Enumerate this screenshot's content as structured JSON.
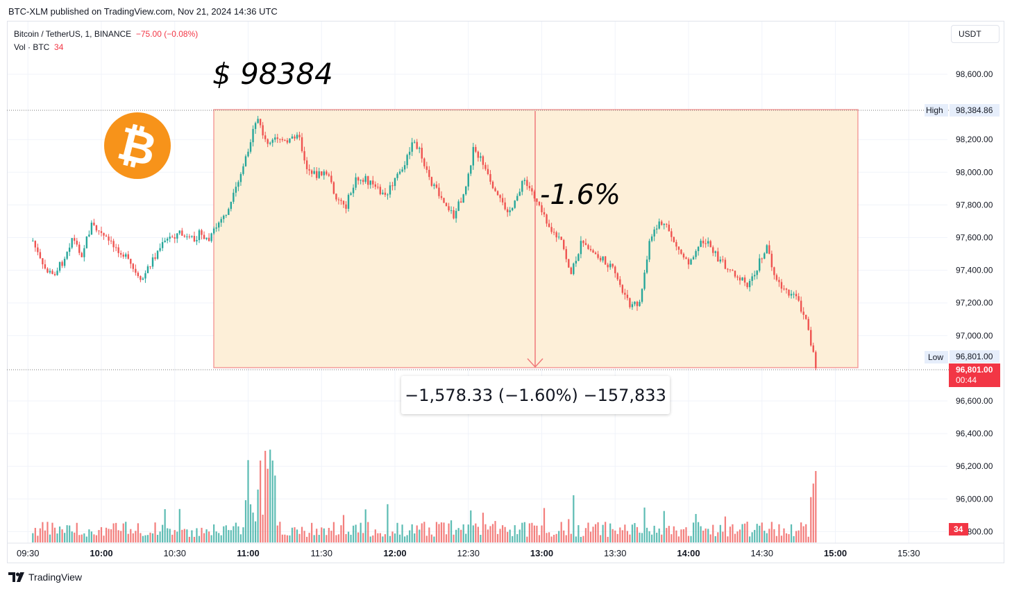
{
  "header": {
    "publisher": "BTC-XLM published on TradingView.com, Nov 21, 2024 14:36 UTC"
  },
  "legend": {
    "symbol": "Bitcoin / TetherUS, 1, BINANCE",
    "change": "−75.00 (−0.08%)",
    "volume_label": "Vol · BTC",
    "volume_value": "34"
  },
  "currency_button": "USDT",
  "annotations": {
    "price_text": "$ 98384",
    "percent_text": "-1.6%",
    "measure_text": "−1,578.33 (−1.60%) −157,833"
  },
  "footer": {
    "brand": "TradingView"
  },
  "colors": {
    "up": "#26a69a",
    "down": "#ef5350",
    "range_fill": "#fdefd8",
    "range_line": "#f0787a",
    "bitcoin": "#f7931a"
  },
  "price_markers": {
    "high_label": "High",
    "high_value": "98,384.86",
    "low_label": "Low",
    "low_value": "96,801.00",
    "last_value": "96,801.00",
    "last_countdown": "00:44",
    "volume_badge": "34"
  },
  "chart_data": {
    "type": "candlestick",
    "symbol": "Bitcoin / TetherUS",
    "interval": "1",
    "exchange": "BINANCE",
    "y_axis": {
      "ticks": [
        "98,600.00",
        "98,200.00",
        "98,000.00",
        "97,800.00",
        "97,600.00",
        "97,400.00",
        "97,200.00",
        "97,000.00",
        "96,600.00",
        "96,400.00",
        "96,200.00",
        "96,000.00",
        "95,800.00"
      ],
      "tick_values": [
        98600,
        98200,
        98000,
        97800,
        97600,
        97400,
        97200,
        97000,
        96600,
        96400,
        96200,
        96000,
        95800
      ],
      "ylim": [
        95800,
        98650
      ]
    },
    "x_axis": {
      "ticks": [
        "09:30",
        "10:00",
        "10:30",
        "11:00",
        "11:30",
        "12:00",
        "12:30",
        "13:00",
        "13:30",
        "14:00",
        "14:30",
        "15:00",
        "15:30"
      ]
    },
    "high": 98384.86,
    "low": 96801.0,
    "last": 96801.0,
    "measure": {
      "from": 98384.86,
      "to": 96806.53,
      "change": -1578.33,
      "percent": -1.6
    },
    "series": [
      {
        "time": "09:32",
        "close": 97580
      },
      {
        "time": "09:36",
        "close": 97420
      },
      {
        "time": "09:40",
        "close": 97370
      },
      {
        "time": "09:44",
        "close": 97450
      },
      {
        "time": "09:48",
        "close": 97600
      },
      {
        "time": "09:52",
        "close": 97500
      },
      {
        "time": "09:56",
        "close": 97680
      },
      {
        "time": "10:00",
        "close": 97620
      },
      {
        "time": "10:04",
        "close": 97560
      },
      {
        "time": "10:08",
        "close": 97520
      },
      {
        "time": "10:12",
        "close": 97430
      },
      {
        "time": "10:16",
        "close": 97320
      },
      {
        "time": "10:20",
        "close": 97440
      },
      {
        "time": "10:24",
        "close": 97540
      },
      {
        "time": "10:28",
        "close": 97600
      },
      {
        "time": "10:32",
        "close": 97630
      },
      {
        "time": "10:36",
        "close": 97580
      },
      {
        "time": "10:40",
        "close": 97620
      },
      {
        "time": "10:44",
        "close": 97580
      },
      {
        "time": "10:48",
        "close": 97690
      },
      {
        "time": "10:52",
        "close": 97770
      },
      {
        "time": "10:56",
        "close": 97930
      },
      {
        "time": "11:00",
        "close": 98150
      },
      {
        "time": "11:04",
        "close": 98330
      },
      {
        "time": "11:08",
        "close": 98160
      },
      {
        "time": "11:12",
        "close": 98220
      },
      {
        "time": "11:16",
        "close": 98170
      },
      {
        "time": "11:20",
        "close": 98250
      },
      {
        "time": "11:24",
        "close": 98030
      },
      {
        "time": "11:28",
        "close": 97980
      },
      {
        "time": "11:32",
        "close": 98000
      },
      {
        "time": "11:36",
        "close": 97850
      },
      {
        "time": "11:40",
        "close": 97800
      },
      {
        "time": "11:44",
        "close": 97950
      },
      {
        "time": "11:48",
        "close": 97960
      },
      {
        "time": "11:52",
        "close": 97900
      },
      {
        "time": "11:56",
        "close": 97850
      },
      {
        "time": "12:00",
        "close": 97950
      },
      {
        "time": "12:04",
        "close": 98050
      },
      {
        "time": "12:08",
        "close": 98200
      },
      {
        "time": "12:12",
        "close": 98050
      },
      {
        "time": "12:16",
        "close": 97900
      },
      {
        "time": "12:20",
        "close": 97830
      },
      {
        "time": "12:24",
        "close": 97730
      },
      {
        "time": "12:28",
        "close": 97870
      },
      {
        "time": "12:32",
        "close": 98130
      },
      {
        "time": "12:36",
        "close": 98060
      },
      {
        "time": "12:40",
        "close": 97880
      },
      {
        "time": "12:44",
        "close": 97800
      },
      {
        "time": "12:48",
        "close": 97760
      },
      {
        "time": "12:52",
        "close": 97950
      },
      {
        "time": "12:56",
        "close": 97880
      },
      {
        "time": "13:00",
        "close": 97780
      },
      {
        "time": "13:04",
        "close": 97640
      },
      {
        "time": "13:08",
        "close": 97570
      },
      {
        "time": "13:12",
        "close": 97380
      },
      {
        "time": "13:16",
        "close": 97560
      },
      {
        "time": "13:20",
        "close": 97520
      },
      {
        "time": "13:24",
        "close": 97470
      },
      {
        "time": "13:28",
        "close": 97430
      },
      {
        "time": "13:32",
        "close": 97310
      },
      {
        "time": "13:36",
        "close": 97180
      },
      {
        "time": "13:40",
        "close": 97200
      },
      {
        "time": "13:44",
        "close": 97560
      },
      {
        "time": "13:48",
        "close": 97700
      },
      {
        "time": "13:52",
        "close": 97640
      },
      {
        "time": "13:56",
        "close": 97520
      },
      {
        "time": "14:00",
        "close": 97450
      },
      {
        "time": "14:04",
        "close": 97560
      },
      {
        "time": "14:08",
        "close": 97580
      },
      {
        "time": "14:12",
        "close": 97470
      },
      {
        "time": "14:16",
        "close": 97420
      },
      {
        "time": "14:20",
        "close": 97370
      },
      {
        "time": "14:24",
        "close": 97300
      },
      {
        "time": "14:28",
        "close": 97420
      },
      {
        "time": "14:32",
        "close": 97550
      },
      {
        "time": "14:36",
        "close": 97330
      },
      {
        "time": "14:40",
        "close": 97260
      },
      {
        "time": "14:44",
        "close": 97230
      },
      {
        "time": "14:48",
        "close": 97100
      },
      {
        "time": "14:52",
        "close": 96801
      }
    ]
  }
}
